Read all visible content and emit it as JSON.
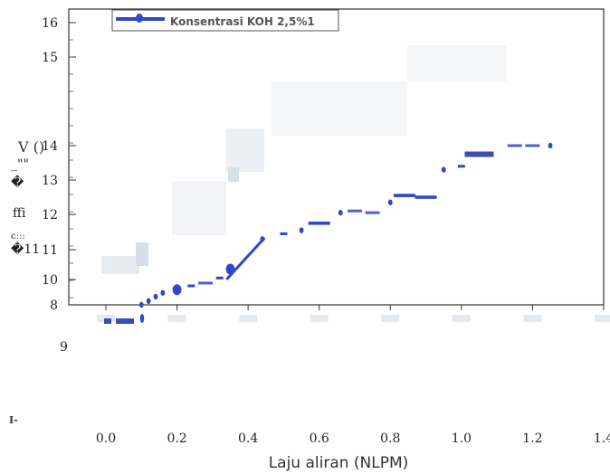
{
  "chart_data": {
    "type": "scatter",
    "xlabel": "Laju aliran (NLPM)",
    "ylabel": "V ()",
    "x_ticks": [
      "0.0",
      "0.2",
      "0.4",
      "0.6",
      "0.8",
      "1.0",
      "1.2",
      "1.4"
    ],
    "y_ticks": [
      "8",
      "10",
      "11",
      "12",
      "13",
      "14",
      "15",
      "16"
    ],
    "y_stray_tick": "9",
    "y_garbled_labels": [
      "_\"\"",
      "�",
      "ffi",
      "c:::",
      "�11"
    ],
    "stray_mark": "I-",
    "xlim": [
      0.0,
      1.4
    ],
    "ylim": [
      8,
      16.3
    ],
    "grid": false,
    "legend_position": "top-left",
    "color": "#2f47c8",
    "series": [
      {
        "name": "Konsentrasi KOH 2,5%1",
        "x": [
          0.1,
          0.12,
          0.14,
          0.16,
          0.2,
          0.24,
          0.28,
          0.32,
          0.35,
          0.37,
          0.44,
          0.5,
          0.55,
          0.6,
          0.66,
          0.7,
          0.75,
          0.8,
          0.84,
          0.9,
          0.95,
          1.0,
          1.05,
          1.15,
          1.2,
          1.25
        ],
        "y": [
          8.0,
          8.3,
          8.65,
          8.95,
          9.2,
          9.5,
          9.72,
          10.05,
          10.35,
          10.55,
          11.3,
          11.45,
          11.55,
          11.75,
          12.05,
          12.1,
          12.05,
          12.35,
          12.55,
          12.5,
          13.3,
          13.4,
          13.75,
          14.0,
          14.0,
          14.0
        ]
      }
    ]
  }
}
